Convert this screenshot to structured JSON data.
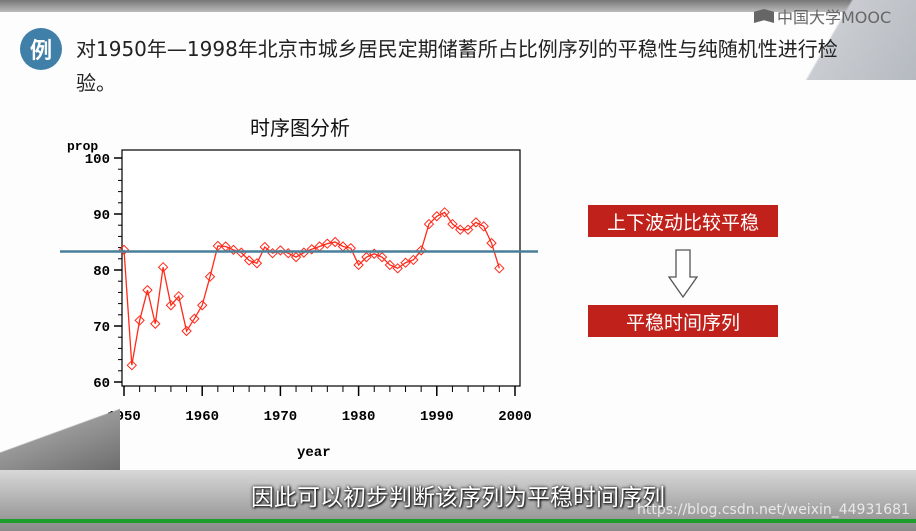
{
  "logo": {
    "text": "中国大学MOOC"
  },
  "slide": {
    "badge": "例",
    "title": "对1950年—1998年北京市城乡居民定期储蓄所占比例序列的平稳性与纯随机性进行检验。",
    "chart_title": "时序图分析",
    "box1": "上下波动比较平稳",
    "box2": "平稳时间序列",
    "accent_color": "#c0211b",
    "badge_color": "#3f7fa8"
  },
  "subtitle": "因此可以初步判断该序列为平稳时间序列",
  "watermark": "https://blog.csdn.net/weixin_44931681",
  "chart_data": {
    "type": "line",
    "title": "时序图分析",
    "xlabel": "year",
    "ylabel": "prop",
    "xlim": [
      1950,
      2000
    ],
    "ylim": [
      60,
      100
    ],
    "xticks": [
      "1950",
      "1960",
      "1970",
      "1980",
      "1990",
      "2000"
    ],
    "yticks": [
      "60",
      "70",
      "80",
      "90",
      "100"
    ],
    "reference_line": 83.3,
    "series_color": "#ff2a1a",
    "reference_color": "#4a7f99",
    "marker": "diamond",
    "x": [
      1950,
      1951,
      1952,
      1953,
      1954,
      1955,
      1956,
      1957,
      1958,
      1959,
      1960,
      1961,
      1962,
      1963,
      1964,
      1965,
      1966,
      1967,
      1968,
      1969,
      1970,
      1971,
      1972,
      1973,
      1974,
      1975,
      1976,
      1977,
      1978,
      1979,
      1980,
      1981,
      1982,
      1983,
      1984,
      1985,
      1986,
      1987,
      1988,
      1989,
      1990,
      1991,
      1992,
      1993,
      1994,
      1995,
      1996,
      1997,
      1998
    ],
    "y": [
      83.6,
      63.0,
      71.0,
      76.4,
      70.4,
      80.5,
      73.7,
      75.3,
      69.1,
      71.3,
      73.7,
      78.8,
      84.3,
      84.2,
      83.6,
      83.1,
      81.7,
      81.2,
      84.1,
      83.0,
      83.5,
      83.0,
      82.3,
      83.1,
      83.7,
      84.2,
      84.7,
      85.0,
      84.2,
      83.9,
      80.9,
      82.3,
      82.9,
      82.3,
      80.9,
      80.3,
      81.3,
      81.8,
      83.5,
      88.2,
      89.6,
      90.3,
      88.2,
      87.2,
      87.2,
      88.5,
      87.8,
      84.8,
      80.3
    ]
  }
}
